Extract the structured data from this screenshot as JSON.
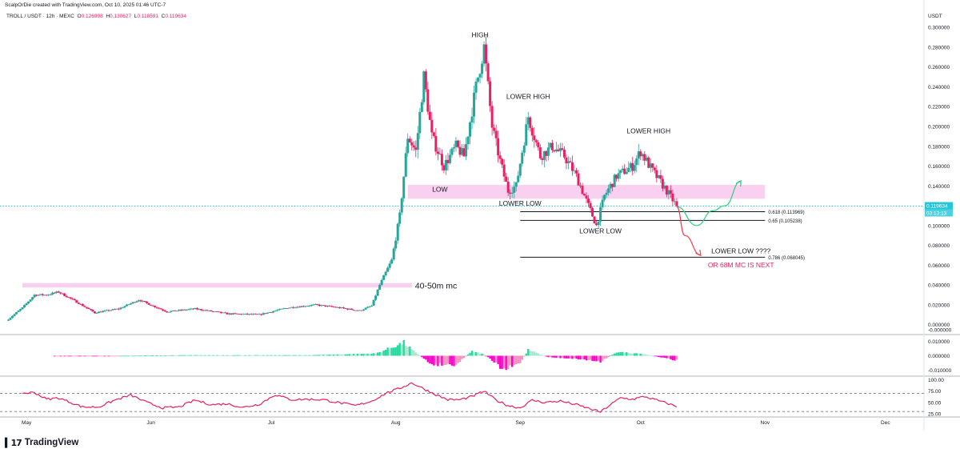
{
  "header": {
    "credit": "ScalpOrDie created with TradingView.com, Oct 10, 2025 01:46 UTC-7",
    "symbol": "TROLL / USDT · 12h · MEXC",
    "ohlc": [
      {
        "label": "O",
        "value": "0.126998"
      },
      {
        "label": "H",
        "value": "0.130627"
      },
      {
        "label": "L",
        "value": "0.118591"
      },
      {
        "label": "C",
        "value": "0.119634"
      }
    ],
    "currency": "USDT"
  },
  "brand": {
    "icon": "tradingview-logo-icon",
    "text": "TradingView"
  },
  "colors": {
    "up": "#26a69a",
    "down": "#e91e63",
    "zone": "#f8c8ec",
    "pane_line": "#e91e63",
    "green_arrow": "#26d07c",
    "red_arrow": "#ef3c4c",
    "lastprice": "#26c6da"
  },
  "chart_data": [
    {
      "type": "candlestick",
      "title": "TROLL / USDT · 12h · MEXC",
      "ylabel": "USDT",
      "x": [
        "2025-04-26",
        "2025-10-10"
      ],
      "ylim": [
        -0.01,
        0.305
      ],
      "xlim": [
        "2025-04-26",
        "2025-12-10"
      ],
      "x_ticks": [
        {
          "date": "2025-05-01",
          "label": "May"
        },
        {
          "date": "2025-06-01",
          "label": "Jun"
        },
        {
          "date": "2025-07-01",
          "label": "Jul"
        },
        {
          "date": "2025-08-01",
          "label": "Aug"
        },
        {
          "date": "2025-09-01",
          "label": "Sep"
        },
        {
          "date": "2025-10-01",
          "label": "Oct"
        },
        {
          "date": "2025-11-01",
          "label": "Nov"
        },
        {
          "date": "2025-12-01",
          "label": "Dec"
        }
      ],
      "y_ticks": [
        "0.300000",
        "0.280000",
        "0.260000",
        "0.240000",
        "0.220000",
        "0.200000",
        "0.180000",
        "0.160000",
        "0.140000",
        "0.120000",
        "0.100000",
        "0.080000",
        "0.060000",
        "0.040000",
        "0.020000",
        "0.000000"
      ],
      "close_anchors": [
        {
          "date": "2025-04-26",
          "close": 0.004
        },
        {
          "date": "2025-04-30",
          "close": 0.017
        },
        {
          "date": "2025-05-03",
          "close": 0.03
        },
        {
          "date": "2025-05-06",
          "close": 0.03
        },
        {
          "date": "2025-05-09",
          "close": 0.033
        },
        {
          "date": "2025-05-13",
          "close": 0.024
        },
        {
          "date": "2025-05-18",
          "close": 0.012
        },
        {
          "date": "2025-05-24",
          "close": 0.016
        },
        {
          "date": "2025-05-29",
          "close": 0.025
        },
        {
          "date": "2025-06-05",
          "close": 0.013
        },
        {
          "date": "2025-06-12",
          "close": 0.016
        },
        {
          "date": "2025-06-20",
          "close": 0.011
        },
        {
          "date": "2025-06-28",
          "close": 0.01
        },
        {
          "date": "2025-07-05",
          "close": 0.017
        },
        {
          "date": "2025-07-12",
          "close": 0.02
        },
        {
          "date": "2025-07-18",
          "close": 0.017
        },
        {
          "date": "2025-07-23",
          "close": 0.014
        },
        {
          "date": "2025-07-26",
          "close": 0.019
        },
        {
          "date": "2025-07-28",
          "close": 0.04
        },
        {
          "date": "2025-07-31",
          "close": 0.065
        },
        {
          "date": "2025-08-02",
          "close": 0.11
        },
        {
          "date": "2025-08-04",
          "close": 0.19
        },
        {
          "date": "2025-08-06",
          "close": 0.175
        },
        {
          "date": "2025-08-08",
          "close": 0.25
        },
        {
          "date": "2025-08-10",
          "close": 0.19
        },
        {
          "date": "2025-08-13",
          "close": 0.16
        },
        {
          "date": "2025-08-16",
          "close": 0.18
        },
        {
          "date": "2025-08-18",
          "close": 0.17
        },
        {
          "date": "2025-08-21",
          "close": 0.24
        },
        {
          "date": "2025-08-23",
          "close": 0.28
        },
        {
          "date": "2025-08-25",
          "close": 0.2
        },
        {
          "date": "2025-08-27",
          "close": 0.165
        },
        {
          "date": "2025-08-29",
          "close": 0.135
        },
        {
          "date": "2025-08-31",
          "close": 0.14
        },
        {
          "date": "2025-09-03",
          "close": 0.21
        },
        {
          "date": "2025-09-06",
          "close": 0.17
        },
        {
          "date": "2025-09-09",
          "close": 0.18
        },
        {
          "date": "2025-09-12",
          "close": 0.17
        },
        {
          "date": "2025-09-15",
          "close": 0.15
        },
        {
          "date": "2025-09-18",
          "close": 0.12
        },
        {
          "date": "2025-09-20",
          "close": 0.1
        },
        {
          "date": "2025-09-22",
          "close": 0.13
        },
        {
          "date": "2025-09-25",
          "close": 0.15
        },
        {
          "date": "2025-09-29",
          "close": 0.16
        },
        {
          "date": "2025-10-01",
          "close": 0.175
        },
        {
          "date": "2025-10-04",
          "close": 0.155
        },
        {
          "date": "2025-10-07",
          "close": 0.138
        },
        {
          "date": "2025-10-10",
          "close": 0.1196
        }
      ],
      "last_price": {
        "value": "0.119634",
        "countdown": "03:13:13"
      },
      "zones": [
        {
          "from": "2025-04-30",
          "to": "2025-08-05",
          "ylim": [
            0.0375,
            0.042
          ],
          "label": "40-50m mc"
        },
        {
          "from": "2025-08-04",
          "to": "2025-11-01",
          "ylim": [
            0.127,
            0.141
          ],
          "label": ""
        }
      ],
      "fib_levels": [
        {
          "value": 0.113969,
          "label": "0.618 (0.113969)",
          "from": "2025-09-01",
          "to": "2025-11-01"
        },
        {
          "value": 0.105238,
          "label": "0.65 (0.105238)",
          "from": "2025-09-01",
          "to": "2025-11-01"
        },
        {
          "value": 0.068045,
          "label": "0.786 (0.068045)",
          "from": "2025-09-01",
          "to": "2025-11-01"
        }
      ],
      "annotations": [
        {
          "text": "HIGH",
          "date": "2025-08-22",
          "value": 0.29,
          "color": "#131722"
        },
        {
          "text": "LOWER HIGH",
          "date": "2025-09-03",
          "value": 0.228,
          "color": "#131722"
        },
        {
          "text": "LOWER HIGH",
          "date": "2025-10-03",
          "value": 0.193,
          "color": "#131722"
        },
        {
          "text": "LOW",
          "date": "2025-08-12",
          "value": 0.134,
          "color": "#131722"
        },
        {
          "text": "LOWER LOW",
          "date": "2025-09-01",
          "value": 0.12,
          "color": "#131722"
        },
        {
          "text": "LOWER LOW",
          "date": "2025-09-21",
          "value": 0.092,
          "color": "#131722"
        },
        {
          "text": "LOWER LOW ????",
          "date": "2025-10-26",
          "value": 0.072,
          "color": "#131722"
        },
        {
          "text": "OR 68M MC IS NEXT",
          "date": "2025-10-26",
          "value": 0.058,
          "color": "#e91e63"
        }
      ],
      "projections": [
        {
          "color": "green",
          "points": [
            [
              "2025-10-10",
              0.119
            ],
            [
              "2025-10-15",
              0.1
            ],
            [
              "2025-10-19",
              0.115
            ],
            [
              "2025-10-22",
              0.12
            ],
            [
              "2025-10-26",
              0.145
            ]
          ]
        },
        {
          "color": "red",
          "points": [
            [
              "2025-10-10",
              0.119
            ],
            [
              "2025-10-12",
              0.09
            ],
            [
              "2025-10-16",
              0.07
            ]
          ]
        }
      ]
    },
    {
      "type": "bar",
      "title": "",
      "ylabel": "",
      "ylim": [
        -0.014,
        0.014
      ],
      "y_ticks": [
        "0.010000",
        "0.000000",
        "-0.010000"
      ],
      "x": [
        "2025-05-08",
        "2025-10-10"
      ],
      "anchors": [
        {
          "date": "2025-05-08",
          "value": -0.0004
        },
        {
          "date": "2025-06-10",
          "value": 0.0004
        },
        {
          "date": "2025-07-10",
          "value": 0.0004
        },
        {
          "date": "2025-07-27",
          "value": 0.0015
        },
        {
          "date": "2025-08-03",
          "value": 0.009
        },
        {
          "date": "2025-08-06",
          "value": 0.002
        },
        {
          "date": "2025-08-10",
          "value": -0.006
        },
        {
          "date": "2025-08-16",
          "value": -0.006
        },
        {
          "date": "2025-08-20",
          "value": 0.003
        },
        {
          "date": "2025-08-23",
          "value": 0.001
        },
        {
          "date": "2025-08-28",
          "value": -0.01
        },
        {
          "date": "2025-09-01",
          "value": -0.005
        },
        {
          "date": "2025-09-03",
          "value": 0.004
        },
        {
          "date": "2025-09-08",
          "value": -0.001
        },
        {
          "date": "2025-09-15",
          "value": -0.002
        },
        {
          "date": "2025-09-21",
          "value": -0.004
        },
        {
          "date": "2025-09-25",
          "value": 0.0025
        },
        {
          "date": "2025-10-01",
          "value": 0.0015
        },
        {
          "date": "2025-10-05",
          "value": -0.0005
        },
        {
          "date": "2025-10-10",
          "value": -0.003
        }
      ]
    },
    {
      "type": "line",
      "title": "",
      "ylabel": "",
      "ylim": [
        18,
        106
      ],
      "y_ticks": [
        "100.00",
        "75.00",
        "50.00",
        "25.00"
      ],
      "reference_lines": [
        70,
        30
      ],
      "x": [
        "2025-04-30",
        "2025-10-10"
      ],
      "anchors": [
        {
          "date": "2025-04-30",
          "value": 70
        },
        {
          "date": "2025-05-03",
          "value": 72
        },
        {
          "date": "2025-05-06",
          "value": 57
        },
        {
          "date": "2025-05-09",
          "value": 60
        },
        {
          "date": "2025-05-12",
          "value": 50
        },
        {
          "date": "2025-05-15",
          "value": 40
        },
        {
          "date": "2025-05-19",
          "value": 40
        },
        {
          "date": "2025-05-23",
          "value": 55
        },
        {
          "date": "2025-05-27",
          "value": 66
        },
        {
          "date": "2025-05-31",
          "value": 50
        },
        {
          "date": "2025-06-04",
          "value": 38
        },
        {
          "date": "2025-06-08",
          "value": 40
        },
        {
          "date": "2025-06-12",
          "value": 55
        },
        {
          "date": "2025-06-16",
          "value": 45
        },
        {
          "date": "2025-06-20",
          "value": 47
        },
        {
          "date": "2025-06-24",
          "value": 39
        },
        {
          "date": "2025-06-28",
          "value": 46
        },
        {
          "date": "2025-07-02",
          "value": 67
        },
        {
          "date": "2025-07-06",
          "value": 56
        },
        {
          "date": "2025-07-10",
          "value": 57
        },
        {
          "date": "2025-07-14",
          "value": 56
        },
        {
          "date": "2025-07-18",
          "value": 49
        },
        {
          "date": "2025-07-22",
          "value": 43
        },
        {
          "date": "2025-07-26",
          "value": 53
        },
        {
          "date": "2025-07-30",
          "value": 72
        },
        {
          "date": "2025-08-02",
          "value": 81
        },
        {
          "date": "2025-08-05",
          "value": 93
        },
        {
          "date": "2025-08-08",
          "value": 80
        },
        {
          "date": "2025-08-11",
          "value": 67
        },
        {
          "date": "2025-08-14",
          "value": 56
        },
        {
          "date": "2025-08-17",
          "value": 56
        },
        {
          "date": "2025-08-20",
          "value": 63
        },
        {
          "date": "2025-08-23",
          "value": 75
        },
        {
          "date": "2025-08-26",
          "value": 55
        },
        {
          "date": "2025-08-29",
          "value": 43
        },
        {
          "date": "2025-09-01",
          "value": 38
        },
        {
          "date": "2025-09-04",
          "value": 55
        },
        {
          "date": "2025-09-07",
          "value": 50
        },
        {
          "date": "2025-09-11",
          "value": 53
        },
        {
          "date": "2025-09-15",
          "value": 45
        },
        {
          "date": "2025-09-18",
          "value": 37
        },
        {
          "date": "2025-09-21",
          "value": 29
        },
        {
          "date": "2025-09-23",
          "value": 42
        },
        {
          "date": "2025-09-26",
          "value": 60
        },
        {
          "date": "2025-09-29",
          "value": 57
        },
        {
          "date": "2025-10-02",
          "value": 63
        },
        {
          "date": "2025-10-05",
          "value": 55
        },
        {
          "date": "2025-10-08",
          "value": 47
        },
        {
          "date": "2025-10-10",
          "value": 41
        }
      ]
    }
  ]
}
